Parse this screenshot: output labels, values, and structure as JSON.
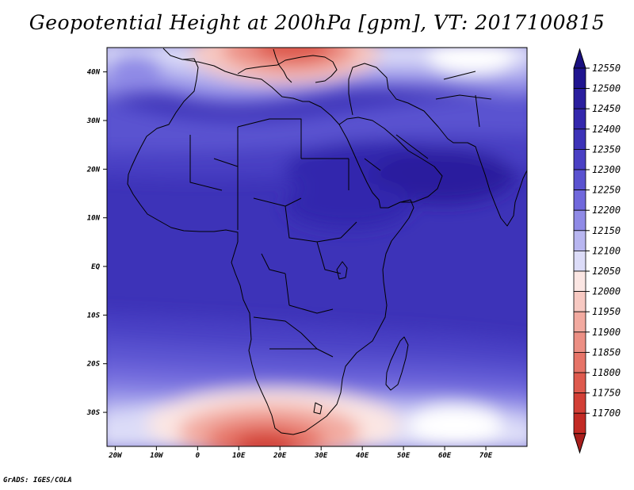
{
  "title": "Geopotential Height at 200hPa [gpm], VT: 2017100815",
  "credit": "GrADS: IGES/COLA",
  "map": {
    "projection": "lat-lon",
    "lon_range": [
      -22,
      80
    ],
    "lat_range": [
      -37,
      45
    ],
    "lat_ticks": [
      {
        "value": 40,
        "label": "40N"
      },
      {
        "value": 30,
        "label": "30N"
      },
      {
        "value": 20,
        "label": "20N"
      },
      {
        "value": 10,
        "label": "10N"
      },
      {
        "value": 0,
        "label": "EQ"
      },
      {
        "value": -10,
        "label": "10S"
      },
      {
        "value": -20,
        "label": "20S"
      },
      {
        "value": -30,
        "label": "30S"
      }
    ],
    "lon_ticks": [
      {
        "value": -20,
        "label": "20W"
      },
      {
        "value": -10,
        "label": "10W"
      },
      {
        "value": 0,
        "label": "0"
      },
      {
        "value": 10,
        "label": "10E"
      },
      {
        "value": 20,
        "label": "20E"
      },
      {
        "value": 30,
        "label": "30E"
      },
      {
        "value": 40,
        "label": "40E"
      },
      {
        "value": 50,
        "label": "50E"
      },
      {
        "value": 60,
        "label": "60E"
      },
      {
        "value": 70,
        "label": "70E"
      }
    ]
  },
  "colorbar": {
    "levels": [
      {
        "label": "12550",
        "color": "#201590"
      },
      {
        "label": "12500",
        "color": "#2a1e9e"
      },
      {
        "label": "12450",
        "color": "#3327ad"
      },
      {
        "label": "12400",
        "color": "#3d33b8"
      },
      {
        "label": "12350",
        "color": "#4a40c4"
      },
      {
        "label": "12300",
        "color": "#5a52d0"
      },
      {
        "label": "12250",
        "color": "#7068dc"
      },
      {
        "label": "12200",
        "color": "#8f8ae6"
      },
      {
        "label": "12150",
        "color": "#b8b6f0"
      },
      {
        "label": "12100",
        "color": "#dcdcf8"
      },
      {
        "label": "12050",
        "color": "#fbe6e3"
      },
      {
        "label": "12000",
        "color": "#f7c9c2"
      },
      {
        "label": "11950",
        "color": "#f2aaa0"
      },
      {
        "label": "11900",
        "color": "#ec8f84"
      },
      {
        "label": "11850",
        "color": "#e67468"
      },
      {
        "label": "11800",
        "color": "#de5a4e"
      },
      {
        "label": "11750",
        "color": "#d23f36"
      },
      {
        "label": "11700",
        "color": "#c22a24"
      }
    ],
    "top_arrow_color": "#1a1080",
    "bottom_arrow_color": "#a81e1c"
  }
}
